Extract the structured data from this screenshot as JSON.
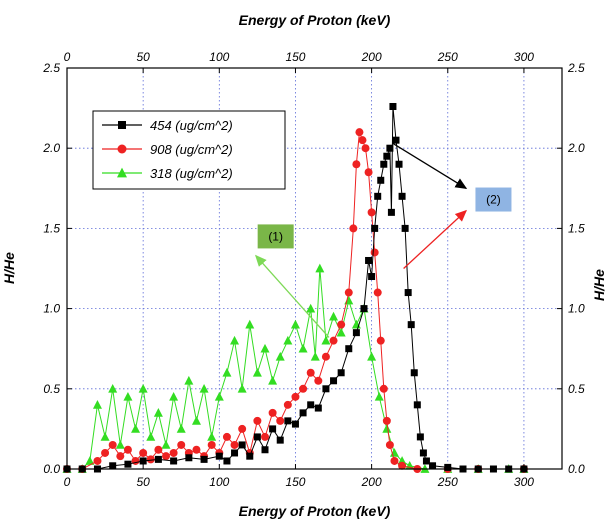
{
  "chart_data": {
    "type": "scatter",
    "title": "",
    "xlabel": "Energy of Proton (keV)",
    "xlabel_top": "Energy of Proton (keV)",
    "ylabel": "H/He",
    "ylabel_right": "H/He",
    "xlim": [
      0,
      325
    ],
    "ylim": [
      0,
      2.5
    ],
    "x_ticks": [
      "0",
      "50",
      "100",
      "150",
      "200",
      "250",
      "300"
    ],
    "x_tick_values": [
      0,
      50,
      100,
      150,
      200,
      250,
      300
    ],
    "y_ticks": [
      "0.0",
      "0.5",
      "1.0",
      "1.5",
      "2.0",
      "2.5"
    ],
    "y_tick_values": [
      0,
      0.5,
      1.0,
      1.5,
      2.0,
      2.5
    ],
    "grid": true,
    "legend_position": "top-left",
    "series": [
      {
        "name": "454 (ug/cm^2)",
        "color": "#000000",
        "marker": "square",
        "points": [
          [
            0,
            0
          ],
          [
            10,
            0
          ],
          [
            20,
            0
          ],
          [
            30,
            0.02
          ],
          [
            40,
            0.03
          ],
          [
            50,
            0.05
          ],
          [
            60,
            0.06
          ],
          [
            70,
            0.05
          ],
          [
            80,
            0.07
          ],
          [
            90,
            0.06
          ],
          [
            100,
            0.08
          ],
          [
            105,
            0.05
          ],
          [
            110,
            0.1
          ],
          [
            115,
            0.15
          ],
          [
            120,
            0.08
          ],
          [
            125,
            0.2
          ],
          [
            130,
            0.12
          ],
          [
            135,
            0.25
          ],
          [
            140,
            0.18
          ],
          [
            145,
            0.3
          ],
          [
            150,
            0.28
          ],
          [
            155,
            0.35
          ],
          [
            160,
            0.4
          ],
          [
            165,
            0.38
          ],
          [
            170,
            0.5
          ],
          [
            175,
            0.55
          ],
          [
            180,
            0.6
          ],
          [
            185,
            0.75
          ],
          [
            190,
            0.85
          ],
          [
            195,
            1.0
          ],
          [
            198,
            1.3
          ],
          [
            200,
            1.2
          ],
          [
            202,
            1.5
          ],
          [
            204,
            1.7
          ],
          [
            206,
            1.8
          ],
          [
            208,
            1.9
          ],
          [
            210,
            1.95
          ],
          [
            212,
            2.0
          ],
          [
            213,
            1.6
          ],
          [
            214,
            2.26
          ],
          [
            216,
            2.05
          ],
          [
            218,
            1.9
          ],
          [
            220,
            1.7
          ],
          [
            222,
            1.5
          ],
          [
            224,
            1.1
          ],
          [
            226,
            0.9
          ],
          [
            228,
            0.6
          ],
          [
            230,
            0.4
          ],
          [
            232,
            0.2
          ],
          [
            234,
            0.1
          ],
          [
            236,
            0.05
          ],
          [
            240,
            0.02
          ],
          [
            250,
            0.01
          ],
          [
            260,
            0
          ],
          [
            270,
            0
          ],
          [
            280,
            0
          ],
          [
            290,
            0
          ],
          [
            300,
            0
          ]
        ]
      },
      {
        "name": "908 (ug/cm^2)",
        "color": "#ee2222",
        "marker": "circle",
        "points": [
          [
            0,
            0
          ],
          [
            10,
            0
          ],
          [
            20,
            0.05
          ],
          [
            25,
            0.1
          ],
          [
            30,
            0.15
          ],
          [
            35,
            0.08
          ],
          [
            40,
            0.12
          ],
          [
            45,
            0.05
          ],
          [
            50,
            0.1
          ],
          [
            55,
            0.06
          ],
          [
            60,
            0.12
          ],
          [
            65,
            0.08
          ],
          [
            70,
            0.1
          ],
          [
            75,
            0.15
          ],
          [
            80,
            0.1
          ],
          [
            85,
            0.12
          ],
          [
            90,
            0.08
          ],
          [
            95,
            0.15
          ],
          [
            100,
            0.1
          ],
          [
            105,
            0.2
          ],
          [
            110,
            0.15
          ],
          [
            115,
            0.25
          ],
          [
            120,
            0.1
          ],
          [
            125,
            0.3
          ],
          [
            130,
            0.2
          ],
          [
            135,
            0.35
          ],
          [
            140,
            0.3
          ],
          [
            145,
            0.4
          ],
          [
            150,
            0.45
          ],
          [
            155,
            0.5
          ],
          [
            160,
            0.6
          ],
          [
            165,
            0.55
          ],
          [
            170,
            0.7
          ],
          [
            175,
            0.8
          ],
          [
            180,
            0.9
          ],
          [
            185,
            1.1
          ],
          [
            188,
            1.5
          ],
          [
            190,
            1.9
          ],
          [
            192,
            2.1
          ],
          [
            194,
            2.05
          ],
          [
            196,
            2.0
          ],
          [
            198,
            1.85
          ],
          [
            200,
            1.6
          ],
          [
            202,
            1.35
          ],
          [
            204,
            1.1
          ],
          [
            206,
            0.8
          ],
          [
            208,
            0.5
          ],
          [
            210,
            0.3
          ],
          [
            212,
            0.15
          ],
          [
            215,
            0.05
          ],
          [
            220,
            0.02
          ],
          [
            230,
            0
          ],
          [
            250,
            0
          ],
          [
            270,
            0
          ],
          [
            300,
            0
          ]
        ]
      },
      {
        "name": "318 (ug/cm^2)",
        "color": "#33dd22",
        "marker": "triangle",
        "points": [
          [
            0,
            0
          ],
          [
            10,
            0
          ],
          [
            15,
            0.05
          ],
          [
            20,
            0.4
          ],
          [
            25,
            0.2
          ],
          [
            30,
            0.5
          ],
          [
            35,
            0.15
          ],
          [
            40,
            0.45
          ],
          [
            45,
            0.25
          ],
          [
            50,
            0.5
          ],
          [
            55,
            0.2
          ],
          [
            60,
            0.35
          ],
          [
            65,
            0.15
          ],
          [
            70,
            0.45
          ],
          [
            75,
            0.25
          ],
          [
            80,
            0.55
          ],
          [
            85,
            0.3
          ],
          [
            90,
            0.5
          ],
          [
            95,
            0.2
          ],
          [
            100,
            0.45
          ],
          [
            105,
            0.6
          ],
          [
            110,
            0.8
          ],
          [
            115,
            0.5
          ],
          [
            120,
            0.9
          ],
          [
            125,
            0.6
          ],
          [
            130,
            0.75
          ],
          [
            135,
            0.55
          ],
          [
            140,
            0.7
          ],
          [
            145,
            0.8
          ],
          [
            150,
            0.9
          ],
          [
            155,
            0.75
          ],
          [
            160,
            1.0
          ],
          [
            163,
            0.7
          ],
          [
            166,
            1.25
          ],
          [
            170,
            0.8
          ],
          [
            175,
            0.95
          ],
          [
            180,
            0.85
          ],
          [
            185,
            1.05
          ],
          [
            190,
            0.9
          ],
          [
            195,
            1.0
          ],
          [
            200,
            0.7
          ],
          [
            205,
            0.45
          ],
          [
            210,
            0.25
          ],
          [
            215,
            0.1
          ],
          [
            220,
            0.05
          ],
          [
            225,
            0.02
          ],
          [
            235,
            0
          ],
          [
            250,
            0
          ],
          [
            270,
            0
          ],
          [
            290,
            0
          ],
          [
            300,
            0
          ]
        ]
      }
    ],
    "annotations": [
      {
        "text": "(1)",
        "x": 137,
        "y": 1.45,
        "box_color": "#7ab648",
        "arrows": [
          [
            124,
            1.33
          ],
          [
            156,
            1.0
          ],
          [
            176,
            0.85
          ]
        ],
        "arrow_color": "#7ed957"
      },
      {
        "text": "(2)",
        "x": 280,
        "y": 1.68,
        "box_color": "#8fb4e3",
        "arrows": [
          [
            214,
            2.02
          ],
          [
            225,
            1.3
          ]
        ],
        "arrow_colors": [
          "#000000",
          "#ee2222"
        ]
      }
    ]
  }
}
